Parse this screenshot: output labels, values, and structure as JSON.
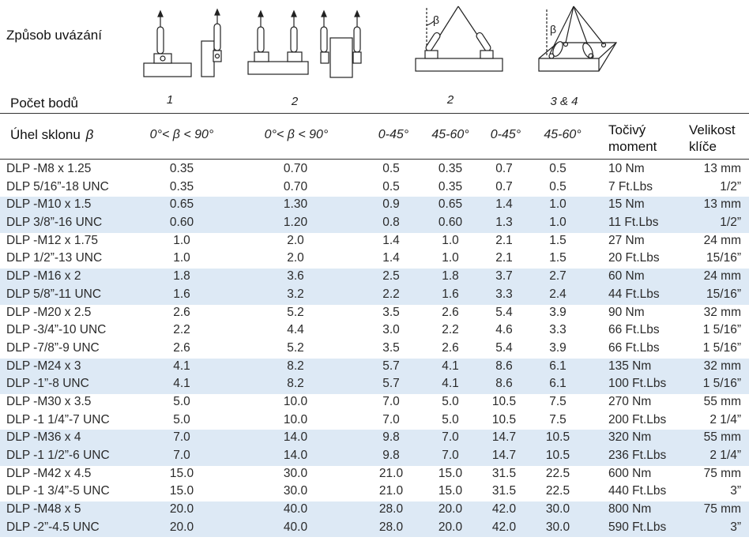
{
  "header": {
    "method_label": "Způsob uvázání",
    "points_label": "Počet bodů",
    "points": [
      "1",
      "2",
      "2",
      "3 & 4"
    ],
    "angle_label": "Úhel sklonu",
    "beta_symbol": "β",
    "angle_cols": [
      "0°< β < 90°",
      "0°< β < 90°",
      "0-45°",
      "45-60°",
      "0-45°",
      "45-60°"
    ],
    "torque_label": "Točivý moment",
    "wrench_label": "Velikost klíče",
    "diagram_beta": "β"
  },
  "groups": [
    {
      "rows": [
        {
          "name": "DLP -M8 x 1.25",
          "v": [
            "0.35",
            "0.70",
            "0.5",
            "0.35",
            "0.7",
            "0.5"
          ],
          "torque": "10 Nm",
          "wrench": "13 mm"
        },
        {
          "name": "DLP 5/16”-18 UNC",
          "v": [
            "0.35",
            "0.70",
            "0.5",
            "0.35",
            "0.7",
            "0.5"
          ],
          "torque": "7 Ft.Lbs",
          "wrench": "1/2”"
        }
      ]
    },
    {
      "rows": [
        {
          "name": "DLP -M10 x 1.5",
          "v": [
            "0.65",
            "1.30",
            "0.9",
            "0.65",
            "1.4",
            "1.0"
          ],
          "torque": "15 Nm",
          "wrench": "13 mm"
        },
        {
          "name": "DLP 3/8”-16 UNC",
          "v": [
            "0.60",
            "1.20",
            "0.8",
            "0.60",
            "1.3",
            "1.0"
          ],
          "torque": "11 Ft.Lbs",
          "wrench": "1/2”"
        }
      ]
    },
    {
      "rows": [
        {
          "name": "DLP -M12 x 1.75",
          "v": [
            "1.0",
            "2.0",
            "1.4",
            "1.0",
            "2.1",
            "1.5"
          ],
          "torque": "27 Nm",
          "wrench": "24 mm"
        },
        {
          "name": "DLP 1/2”-13 UNC",
          "v": [
            "1.0",
            "2.0",
            "1.4",
            "1.0",
            "2.1",
            "1.5"
          ],
          "torque": "20 Ft.Lbs",
          "wrench": "15/16”"
        }
      ]
    },
    {
      "rows": [
        {
          "name": "DLP -M16 x 2",
          "v": [
            "1.8",
            "3.6",
            "2.5",
            "1.8",
            "3.7",
            "2.7"
          ],
          "torque": "60 Nm",
          "wrench": "24 mm"
        },
        {
          "name": "DLP 5/8”-11 UNC",
          "v": [
            "1.6",
            "3.2",
            "2.2",
            "1.6",
            "3.3",
            "2.4"
          ],
          "torque": "44 Ft.Lbs",
          "wrench": "15/16”"
        }
      ]
    },
    {
      "rows": [
        {
          "name": "DLP -M20 x 2.5",
          "v": [
            "2.6",
            "5.2",
            "3.5",
            "2.6",
            "5.4",
            "3.9"
          ],
          "torque": "90 Nm",
          "wrench": "32 mm"
        },
        {
          "name": "DLP -3/4”-10 UNC",
          "v": [
            "2.2",
            "4.4",
            "3.0",
            "2.2",
            "4.6",
            "3.3"
          ],
          "torque": "66 Ft.Lbs",
          "wrench": "1 5/16”"
        },
        {
          "name": "DLP -7/8”-9 UNC",
          "v": [
            "2.6",
            "5.2",
            "3.5",
            "2.6",
            "5.4",
            "3.9"
          ],
          "torque": "66 Ft.Lbs",
          "wrench": "1 5/16”"
        }
      ]
    },
    {
      "rows": [
        {
          "name": "DLP -M24 x 3",
          "v": [
            "4.1",
            "8.2",
            "5.7",
            "4.1",
            "8.6",
            "6.1"
          ],
          "torque": "135 Nm",
          "wrench": "32 mm"
        },
        {
          "name": "DLP -1”-8 UNC",
          "v": [
            "4.1",
            "8.2",
            "5.7",
            "4.1",
            "8.6",
            "6.1"
          ],
          "torque": "100 Ft.Lbs",
          "wrench": "1 5/16”"
        }
      ]
    },
    {
      "rows": [
        {
          "name": "DLP -M30 x 3.5",
          "v": [
            "5.0",
            "10.0",
            "7.0",
            "5.0",
            "10.5",
            "7.5"
          ],
          "torque": "270 Nm",
          "wrench": "55 mm"
        },
        {
          "name": "DLP -1 1/4”-7 UNC",
          "v": [
            "5.0",
            "10.0",
            "7.0",
            "5.0",
            "10.5",
            "7.5"
          ],
          "torque": "200 Ft.Lbs",
          "wrench": "2 1/4”"
        }
      ]
    },
    {
      "rows": [
        {
          "name": "DLP -M36 x 4",
          "v": [
            "7.0",
            "14.0",
            "9.8",
            "7.0",
            "14.7",
            "10.5"
          ],
          "torque": "320 Nm",
          "wrench": "55 mm"
        },
        {
          "name": "DLP -1 1/2”-6 UNC",
          "v": [
            "7.0",
            "14.0",
            "9.8",
            "7.0",
            "14.7",
            "10.5"
          ],
          "torque": "236 Ft.Lbs",
          "wrench": "2 1/4”"
        }
      ]
    },
    {
      "rows": [
        {
          "name": "DLP -M42 x 4.5",
          "v": [
            "15.0",
            "30.0",
            "21.0",
            "15.0",
            "31.5",
            "22.5"
          ],
          "torque": "600 Nm",
          "wrench": "75 mm"
        },
        {
          "name": "DLP -1 3/4”-5 UNC",
          "v": [
            "15.0",
            "30.0",
            "21.0",
            "15.0",
            "31.5",
            "22.5"
          ],
          "torque": "440 Ft.Lbs",
          "wrench": "3”"
        }
      ]
    },
    {
      "rows": [
        {
          "name": "DLP -M48 x 5",
          "v": [
            "20.0",
            "40.0",
            "28.0",
            "20.0",
            "42.0",
            "30.0"
          ],
          "torque": "800 Nm",
          "wrench": "75 mm"
        },
        {
          "name": "DLP -2”-4.5 UNC",
          "v": [
            "20.0",
            "40.0",
            "28.0",
            "20.0",
            "42.0",
            "30.0"
          ],
          "torque": "590 Ft.Lbs",
          "wrench": "3”"
        }
      ]
    }
  ],
  "colors": {
    "shade": "#dde9f5",
    "ink": "#222222"
  }
}
